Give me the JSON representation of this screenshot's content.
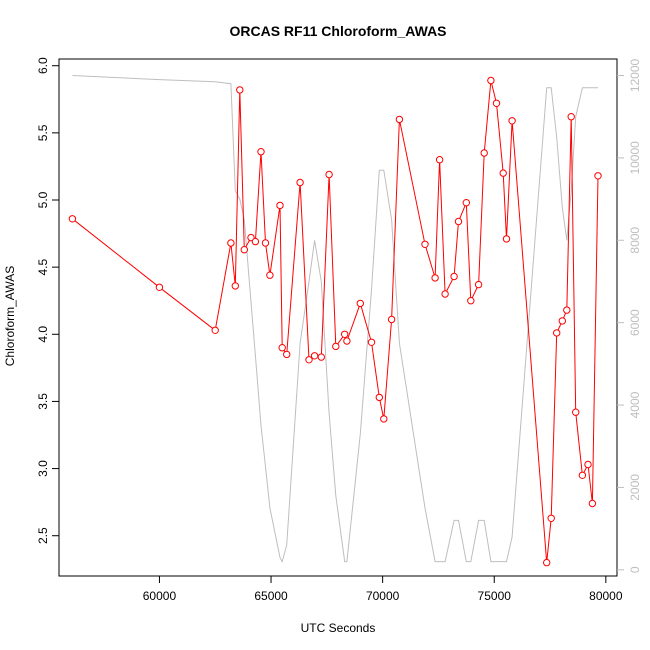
{
  "chart_data": {
    "type": "line",
    "title": "ORCAS RF11 Chloroform_AWAS",
    "xlabel": "UTC Seconds",
    "ylabel": "Chloroform_AWAS",
    "xlim": [
      55500,
      80500
    ],
    "ylim": [
      2.2,
      6.05
    ],
    "y2lim": [
      -150,
      12400
    ],
    "x_ticks": [
      60000,
      65000,
      70000,
      75000,
      80000
    ],
    "y_ticks": [
      2.5,
      3.0,
      3.5,
      4.0,
      4.5,
      5.0,
      5.5,
      6.0
    ],
    "y2_ticks": [
      0,
      2000,
      4000,
      6000,
      8000,
      10000,
      12000
    ],
    "grid": false,
    "legend": "none",
    "colors": {
      "primary": "#ff0000",
      "secondary": "#bebebe",
      "axis": "#000000"
    },
    "series": [
      {
        "axis": "left",
        "style": "line-with-open-circles",
        "color": "#ff0000",
        "x": [
          56100,
          60000,
          62500,
          63200,
          63400,
          63600,
          63800,
          64100,
          64300,
          64550,
          64750,
          64950,
          65400,
          65500,
          65700,
          66300,
          66700,
          66950,
          67250,
          67600,
          67900,
          68300,
          68400,
          69000,
          69500,
          69850,
          70050,
          70400,
          70750,
          71900,
          72350,
          72550,
          72800,
          73200,
          73400,
          73750,
          73950,
          74300,
          74550,
          74850,
          75100,
          75400,
          75550,
          75800,
          77350,
          77550,
          77800,
          78050,
          78250,
          78450,
          78650,
          78950,
          79200,
          79400,
          79650
        ],
        "y": [
          4.86,
          4.35,
          4.03,
          4.68,
          4.36,
          5.82,
          4.63,
          4.72,
          4.69,
          5.36,
          4.68,
          4.44,
          4.96,
          3.9,
          3.85,
          5.13,
          3.81,
          3.84,
          3.83,
          5.19,
          3.91,
          4.0,
          3.95,
          4.23,
          3.94,
          3.53,
          3.37,
          4.11,
          5.6,
          4.67,
          4.42,
          5.3,
          4.3,
          4.43,
          4.84,
          4.98,
          4.25,
          4.37,
          5.35,
          5.89,
          5.72,
          5.2,
          4.71,
          5.59,
          2.3,
          2.63,
          4.01,
          4.1,
          4.18,
          5.62,
          3.42,
          2.95,
          3.03,
          2.74,
          5.18
        ]
      },
      {
        "axis": "right",
        "style": "line",
        "color": "#bebebe",
        "x": [
          56100,
          60000,
          62500,
          63200,
          63400,
          63600,
          63800,
          64100,
          64300,
          64550,
          64750,
          64950,
          65400,
          65500,
          65700,
          66300,
          66700,
          66950,
          67250,
          67600,
          67900,
          68300,
          68400,
          69000,
          69500,
          69850,
          70050,
          70400,
          70750,
          71900,
          72350,
          72550,
          72800,
          73200,
          73400,
          73750,
          73950,
          74300,
          74550,
          74850,
          75100,
          75400,
          75550,
          75800,
          77350,
          77550,
          77800,
          78050,
          78250,
          78450,
          78650,
          78950,
          79200,
          79400,
          79650
        ],
        "y": [
          12000,
          11900,
          11850,
          11800,
          9200,
          9000,
          8500,
          6500,
          5200,
          3500,
          2500,
          1500,
          300,
          200,
          600,
          5500,
          7000,
          8000,
          7000,
          3800,
          1800,
          200,
          200,
          3300,
          6800,
          9700,
          9700,
          8500,
          5500,
          1500,
          200,
          200,
          200,
          1200,
          1200,
          200,
          200,
          1200,
          1200,
          200,
          200,
          200,
          200,
          800,
          11700,
          11700,
          10500,
          8800,
          8000,
          9200,
          11000,
          11700,
          11700,
          11700,
          11700
        ]
      }
    ]
  }
}
